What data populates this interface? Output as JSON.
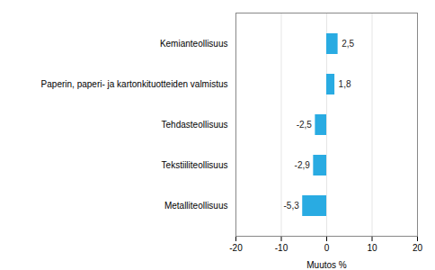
{
  "chart_data": {
    "type": "bar",
    "orientation": "horizontal",
    "categories": [
      "Metalliteollisuus",
      "Tekstiiliteollisuus",
      "Tehdasteollisuus",
      "Paperin, paperi- ja kartonkituotteiden valmistus",
      "Kemianteollisuus"
    ],
    "values": [
      -5.3,
      -2.9,
      -2.5,
      1.8,
      2.5
    ],
    "value_labels": [
      "-5,3",
      "-2,9",
      "-2,5",
      "1,8",
      "2,5"
    ],
    "data_labels": true,
    "color": "#29ABE2",
    "xlabel": "Muutos %",
    "xlim": [
      -20,
      20
    ],
    "xticks": [
      -20,
      -10,
      0,
      10,
      20
    ],
    "grid": true
  }
}
